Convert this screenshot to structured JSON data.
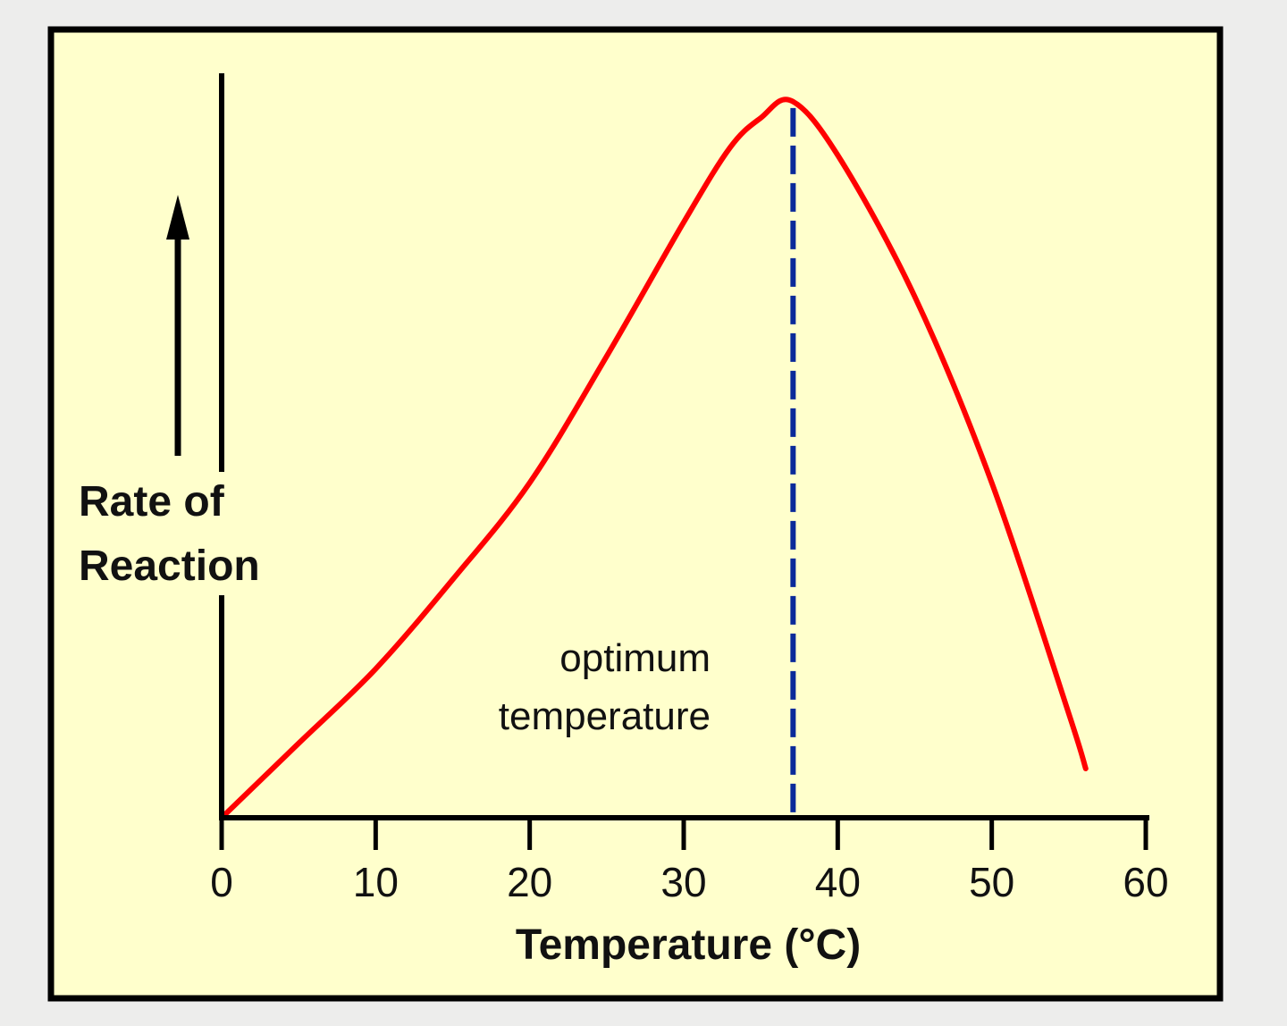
{
  "chart_data": {
    "type": "line",
    "xlabel": "Temperature (°C)",
    "ylabel": [
      "Rate of",
      "Reaction"
    ],
    "xlim": [
      0,
      60
    ],
    "ylim": [
      0,
      1
    ],
    "x_ticks": [
      0,
      10,
      20,
      30,
      40,
      50,
      60
    ],
    "grid": false,
    "series": [
      {
        "color": "#ff0000",
        "x": [
          0,
          5,
          10,
          15,
          20,
          25,
          30,
          33,
          35,
          37,
          40,
          45,
          50,
          55,
          56.1
        ],
        "y": [
          0,
          0.1,
          0.2,
          0.32,
          0.45,
          0.62,
          0.8,
          0.9,
          0.94,
          0.963,
          0.89,
          0.7,
          0.45,
          0.14,
          0.066
        ]
      }
    ],
    "annotation": {
      "text": [
        "optimum",
        "temperature"
      ],
      "x": 37.1,
      "line_color": "#0a2a9a",
      "line_style": "dashed"
    },
    "background": "#ffffcc"
  }
}
